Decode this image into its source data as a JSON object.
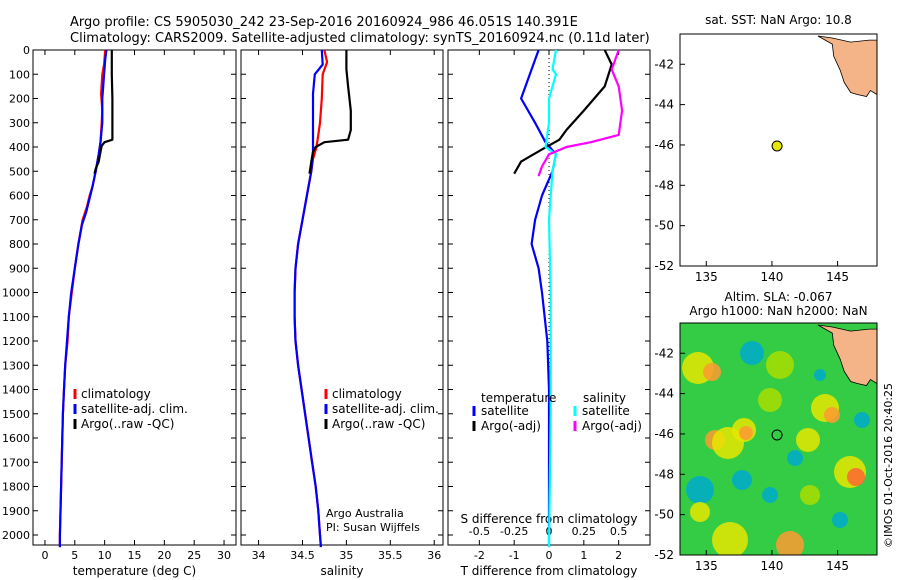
{
  "header": {
    "line1": "Argo profile: CS 5905030_242 23-Sep-2016 20160924_986 46.051S 140.391E",
    "line2": "Climatology: CARS2009. Satellite-adjusted climatology: synTS_20160924.nc (0.11d later)"
  },
  "side_label": "©IMOS 01-Oct-2016 20:40:25",
  "colors": {
    "climatology": "#ff0000",
    "satellite": "#0000ff",
    "argo": "#000000",
    "sal_satellite": "#00ffff",
    "sal_argo": "#ff00ff",
    "land": "#f5b487",
    "float": "#e6e600"
  },
  "chart_data": [
    {
      "id": "temp",
      "type": "line",
      "xlabel": "temperature (deg C)",
      "ylabel": "",
      "xlim": [
        -2,
        32
      ],
      "ylim": [
        2070,
        0
      ],
      "xticks": [
        "0",
        "5",
        "10",
        "15",
        "20",
        "25",
        "30"
      ],
      "xtick_values": [
        0,
        5,
        10,
        15,
        20,
        25,
        30
      ],
      "yticks": [
        0,
        100,
        200,
        300,
        400,
        500,
        600,
        700,
        800,
        900,
        1000,
        1100,
        1200,
        1300,
        1400,
        1500,
        1600,
        1700,
        1800,
        1900,
        2000
      ],
      "legend": [
        "climatology",
        "satellite-adj. clim.",
        "Argo(..raw -QC)"
      ],
      "series": [
        {
          "name": "climatology",
          "color": "#ff0000",
          "points": [
            [
              10.1,
              0
            ],
            [
              9.9,
              60
            ],
            [
              9.6,
              100
            ],
            [
              9.4,
              180
            ],
            [
              9.6,
              250
            ],
            [
              9.5,
              300
            ],
            [
              9.3,
              380
            ],
            [
              9.0,
              430
            ],
            [
              8.5,
              500
            ],
            [
              8.0,
              560
            ],
            [
              7.5,
              600
            ],
            [
              7.0,
              650
            ],
            [
              6.3,
              700
            ],
            [
              5.6,
              800
            ],
            [
              5.0,
              900
            ],
            [
              4.5,
              1000
            ],
            [
              4.0,
              1100
            ],
            [
              3.8,
              1200
            ],
            [
              3.4,
              1300
            ],
            [
              3.2,
              1400
            ],
            [
              3.0,
              1500
            ],
            [
              2.9,
              1600
            ],
            [
              2.8,
              1700
            ],
            [
              2.7,
              1800
            ],
            [
              2.6,
              1900
            ],
            [
              2.5,
              2000
            ],
            [
              2.5,
              2050
            ]
          ]
        },
        {
          "name": "satellite-adj. clim.",
          "color": "#0000ff",
          "points": [
            [
              10.3,
              0
            ],
            [
              10.1,
              40
            ],
            [
              9.9,
              100
            ],
            [
              9.6,
              200
            ],
            [
              9.6,
              300
            ],
            [
              9.3,
              380
            ],
            [
              9.0,
              430
            ],
            [
              8.5,
              500
            ],
            [
              7.9,
              570
            ],
            [
              7.4,
              620
            ],
            [
              6.9,
              670
            ],
            [
              6.2,
              720
            ],
            [
              5.6,
              800
            ],
            [
              5.0,
              900
            ],
            [
              4.4,
              1000
            ],
            [
              4.0,
              1100
            ],
            [
              3.7,
              1200
            ],
            [
              3.4,
              1300
            ],
            [
              3.2,
              1400
            ],
            [
              3.0,
              1500
            ],
            [
              2.9,
              1600
            ],
            [
              2.8,
              1700
            ],
            [
              2.7,
              1800
            ],
            [
              2.6,
              1900
            ],
            [
              2.5,
              2000
            ],
            [
              2.5,
              2050
            ]
          ]
        },
        {
          "name": "Argo(..raw -QC)",
          "color": "#000000",
          "points": [
            [
              11.2,
              0
            ],
            [
              11.2,
              100
            ],
            [
              11.3,
              200
            ],
            [
              11.3,
              300
            ],
            [
              11.3,
              370
            ],
            [
              10.0,
              380
            ],
            [
              9.5,
              395
            ],
            [
              9.3,
              420
            ],
            [
              9.0,
              460
            ],
            [
              8.5,
              490
            ],
            [
              8.3,
              510
            ]
          ]
        }
      ],
      "annotations": []
    },
    {
      "id": "sal",
      "type": "line",
      "xlabel": "salinity",
      "ylabel": "",
      "xlim": [
        33.8,
        36.1
      ],
      "ylim": [
        2070,
        0
      ],
      "xticks": [
        "34",
        "34.5",
        "35",
        "35.5",
        "36"
      ],
      "xtick_values": [
        34,
        34.5,
        35,
        35.5,
        36
      ],
      "legend": [
        "climatology",
        "satellite-adj. clim.",
        "Argo(..raw -QC)"
      ],
      "series": [
        {
          "name": "climatology",
          "color": "#ff0000",
          "points": [
            [
              34.75,
              0
            ],
            [
              34.78,
              50
            ],
            [
              34.73,
              100
            ],
            [
              34.72,
              200
            ],
            [
              34.7,
              300
            ],
            [
              34.68,
              350
            ],
            [
              34.66,
              400
            ],
            [
              34.62,
              450
            ],
            [
              34.6,
              500
            ],
            [
              34.55,
              600
            ],
            [
              34.5,
              700
            ],
            [
              34.45,
              800
            ],
            [
              34.42,
              900
            ],
            [
              34.41,
              1000
            ],
            [
              34.41,
              1100
            ],
            [
              34.42,
              1200
            ],
            [
              34.45,
              1300
            ],
            [
              34.49,
              1400
            ],
            [
              34.53,
              1500
            ],
            [
              34.57,
              1600
            ],
            [
              34.61,
              1700
            ],
            [
              34.65,
              1800
            ],
            [
              34.68,
              1900
            ],
            [
              34.7,
              2000
            ],
            [
              34.71,
              2050
            ]
          ]
        },
        {
          "name": "satellite-adj. clim.",
          "color": "#0000ff",
          "points": [
            [
              34.72,
              0
            ],
            [
              34.73,
              60
            ],
            [
              34.64,
              100
            ],
            [
              34.62,
              180
            ],
            [
              34.62,
              300
            ],
            [
              34.62,
              380
            ],
            [
              34.62,
              420
            ],
            [
              34.6,
              500
            ],
            [
              34.55,
              600
            ],
            [
              34.5,
              700
            ],
            [
              34.45,
              800
            ],
            [
              34.42,
              900
            ],
            [
              34.41,
              1000
            ],
            [
              34.41,
              1100
            ],
            [
              34.42,
              1200
            ],
            [
              34.45,
              1300
            ],
            [
              34.49,
              1400
            ],
            [
              34.53,
              1500
            ],
            [
              34.57,
              1600
            ],
            [
              34.61,
              1700
            ],
            [
              34.65,
              1800
            ],
            [
              34.68,
              1900
            ],
            [
              34.7,
              2000
            ],
            [
              34.71,
              2050
            ]
          ]
        },
        {
          "name": "Argo(..raw -QC)",
          "color": "#000000",
          "points": [
            [
              35.0,
              0
            ],
            [
              35.0,
              80
            ],
            [
              35.02,
              150
            ],
            [
              35.05,
              250
            ],
            [
              35.05,
              330
            ],
            [
              35.02,
              370
            ],
            [
              34.75,
              380
            ],
            [
              34.65,
              400
            ],
            [
              34.62,
              420
            ],
            [
              34.6,
              460
            ],
            [
              34.58,
              510
            ]
          ]
        }
      ],
      "annotations": [
        "Argo Australia",
        "PI: Susan Wijffels"
      ]
    },
    {
      "id": "diff",
      "type": "line",
      "xlabel": "T difference from climatology",
      "xlabel_top": "S difference from climatology",
      "xlim": [
        -2.9,
        2.9
      ],
      "ylim": [
        2070,
        0
      ],
      "xticks": [
        "-2",
        "-1",
        "0",
        "1",
        "2"
      ],
      "xtick_values": [
        -2,
        -1,
        0,
        1,
        2
      ],
      "xticks_top": [
        "-0.5",
        "-0.25",
        "0",
        "0.25",
        "0.5"
      ],
      "xtick_top_values": [
        -2,
        -1,
        0,
        1,
        2
      ],
      "legend_titles": [
        "temperature",
        "salinity"
      ],
      "legend": [
        "satellite",
        "Argo(-adj)",
        "satellite",
        "Argo(-adj)"
      ],
      "series": [
        {
          "name": "temperature satellite",
          "color": "#0000ff",
          "points": [
            [
              -0.3,
              0
            ],
            [
              -0.5,
              80
            ],
            [
              -0.8,
              200
            ],
            [
              -0.4,
              300
            ],
            [
              -0.1,
              380
            ],
            [
              0.2,
              430
            ],
            [
              0.1,
              500
            ],
            [
              -0.2,
              600
            ],
            [
              -0.4,
              700
            ],
            [
              -0.5,
              800
            ],
            [
              -0.3,
              900
            ],
            [
              -0.2,
              1000
            ],
            [
              -0.05,
              1200
            ],
            [
              0,
              1400
            ],
            [
              0,
              2050
            ]
          ]
        },
        {
          "name": "temperature Argo(-adj)",
          "color": "#000000",
          "points": [
            [
              1.6,
              0
            ],
            [
              1.8,
              60
            ],
            [
              1.6,
              150
            ],
            [
              1.0,
              250
            ],
            [
              0.5,
              330
            ],
            [
              0.3,
              370
            ],
            [
              -0.2,
              410
            ],
            [
              -0.8,
              460
            ],
            [
              -1.0,
              510
            ]
          ]
        },
        {
          "name": "salinity satellite",
          "color": "#00ffff",
          "points": [
            [
              0.2,
              0
            ],
            [
              0.1,
              80
            ],
            [
              0.2,
              100
            ],
            [
              0.0,
              200
            ],
            [
              0.0,
              300
            ],
            [
              -0.1,
              400
            ],
            [
              0.2,
              430
            ],
            [
              0.1,
              500
            ],
            [
              0.0,
              700
            ],
            [
              0.05,
              1000
            ],
            [
              0.05,
              1200
            ],
            [
              0.05,
              1500
            ],
            [
              0.0,
              2050
            ]
          ]
        },
        {
          "name": "salinity Argo(-adj)",
          "color": "#ff00ff",
          "points": [
            [
              2.0,
              0
            ],
            [
              1.8,
              80
            ],
            [
              2.0,
              150
            ],
            [
              2.1,
              250
            ],
            [
              2.0,
              350
            ],
            [
              1.2,
              380
            ],
            [
              0.5,
              400
            ],
            [
              0.0,
              430
            ],
            [
              -0.2,
              480
            ],
            [
              -0.3,
              520
            ]
          ]
        }
      ],
      "annotations": []
    },
    {
      "id": "map1",
      "type": "map",
      "title": "sat. SST: NaN Argo: 10.8",
      "xlim": [
        133,
        148
      ],
      "ylim": [
        -52,
        -40.5
      ],
      "xticks": [
        "135",
        "140",
        "145"
      ],
      "xtick_values": [
        135,
        140,
        145
      ],
      "yticks": [
        "-42",
        "-44",
        "-46",
        "-48",
        "-50",
        "-52"
      ],
      "ytick_values": [
        -42,
        -44,
        -46,
        -48,
        -50,
        -52
      ],
      "float": {
        "lon": 140.391,
        "lat": -46.051
      }
    },
    {
      "id": "map2",
      "type": "heatmap",
      "title": "Altim. SLA: -0.067",
      "subtitle": "Argo h1000: NaN h2000: NaN",
      "xlim": [
        133,
        148
      ],
      "ylim": [
        -52,
        -40.5
      ],
      "xticks": [
        "135",
        "140",
        "145"
      ],
      "xtick_values": [
        135,
        140,
        145
      ],
      "yticks": [
        "-42",
        "-44",
        "-46",
        "-48",
        "-50",
        "-52"
      ],
      "ytick_values": [
        -42,
        -44,
        -46,
        -48,
        -50,
        -52
      ],
      "float": {
        "lon": 140.391,
        "lat": -46.051
      }
    }
  ]
}
